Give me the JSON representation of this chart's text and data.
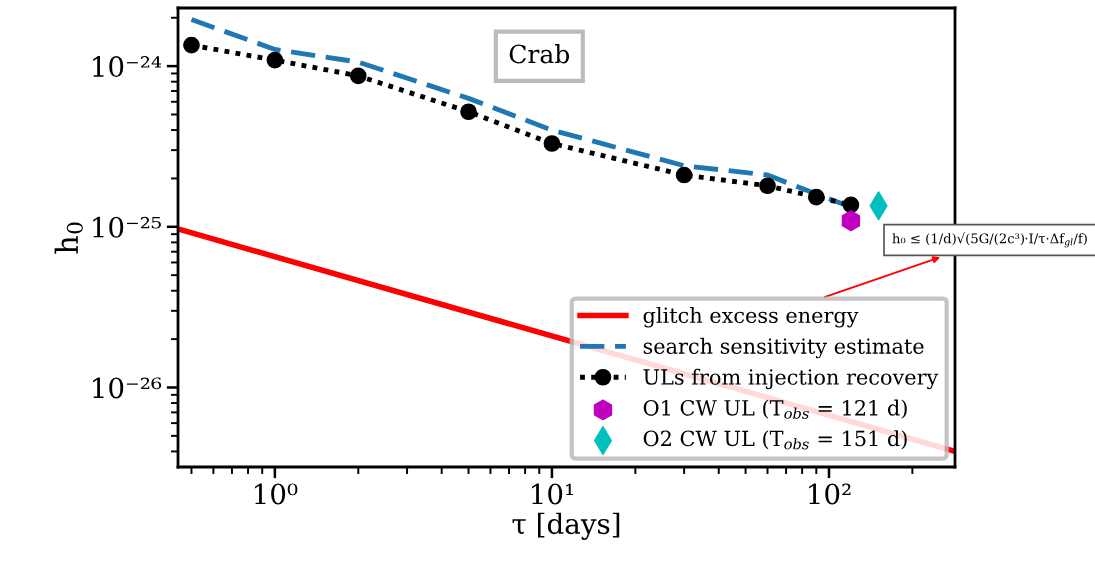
{
  "chart_data": {
    "type": "line",
    "xlabel": "τ [days]",
    "ylabel": "h$_{0}$",
    "log": "xy",
    "xlim": [
      0.447,
      285
    ],
    "ylim": [
      3.2e-27,
      2.3e-24
    ],
    "xticks": [
      {
        "value": 1,
        "label": "10⁰"
      },
      {
        "value": 10,
        "label": "10¹"
      },
      {
        "value": 100,
        "label": "10²"
      }
    ],
    "yticks": [
      {
        "value": 1e-26,
        "label": "10⁻²⁶"
      },
      {
        "value": 1e-25,
        "label": "10⁻²⁵"
      },
      {
        "value": 1e-24,
        "label": "10⁻²⁴"
      }
    ],
    "grid": false,
    "legend": "bottom right",
    "annotations": [
      "Crab",
      "h₀ ≤ (1/d)√(5G/(2c³)·I/τ·Δf$_{gl}$/f)"
    ],
    "series": [
      {
        "name": "glitch excess energy",
        "color": "#ff0000",
        "line_style": "solid",
        "marker": "none",
        "x": [
          0.447,
          285
        ],
        "values": [
          9.7e-26,
          4e-27
        ]
      },
      {
        "name": "search sensitivity estimate",
        "color": "#1f77b4",
        "line_style": "dashed",
        "marker": "none",
        "x": [
          0.5,
          1,
          2,
          5,
          10,
          30,
          60,
          90,
          120
        ],
        "values": [
          1.95e-24,
          1.27e-24,
          1.06e-24,
          6.3e-25,
          4e-25,
          2.4e-25,
          2.1e-25,
          1.6e-25,
          1.33e-25
        ]
      },
      {
        "name": "ULs from injection recovery",
        "color": "#000000",
        "line_style": "dotted",
        "marker": "circle",
        "x": [
          0.5,
          1,
          2,
          5,
          10,
          30,
          60,
          90,
          120
        ],
        "values": [
          1.35e-24,
          1.09e-24,
          8.7e-25,
          5.2e-25,
          3.3e-25,
          2.1e-25,
          1.8e-25,
          1.53e-25,
          1.37e-25
        ]
      },
      {
        "name": "O1 CW UL (T$_{obs}$ = 121 d)",
        "type": "scatter",
        "color": "#bf00bf",
        "x": [
          120
        ],
        "values": [
          1.09e-25
        ]
      },
      {
        "name": "O2 CW UL (T$_{obs}$ = 151 d)",
        "type": "scatter",
        "color": "#00bfbf",
        "marker": "diamond",
        "x": [
          151
        ],
        "values": [
          1.35e-25
        ]
      }
    ]
  }
}
